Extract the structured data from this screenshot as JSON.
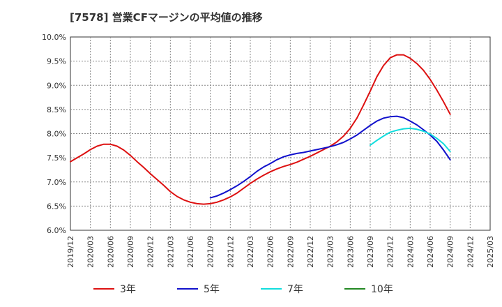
{
  "title": "[7578]  営業CFマージンの平均値の推移",
  "chart_data": {
    "type": "line",
    "title": "[7578]  営業CFマージンの平均値の推移",
    "xlabel": "",
    "ylabel": "",
    "x_ticks": [
      "2019/12",
      "2020/03",
      "2020/06",
      "2020/09",
      "2020/12",
      "2021/03",
      "2021/06",
      "2021/09",
      "2021/12",
      "2022/03",
      "2022/06",
      "2022/09",
      "2022/12",
      "2023/03",
      "2023/06",
      "2023/09",
      "2023/12",
      "2024/03",
      "2024/06",
      "2024/09",
      "2024/12",
      "2025/03"
    ],
    "y_ticks": [
      "10.0%",
      "9.5%",
      "9.0%",
      "8.5%",
      "8.0%",
      "7.5%",
      "7.0%",
      "6.5%",
      "6.0%"
    ],
    "ylim": [
      6.0,
      10.0
    ],
    "grid": true,
    "legend_position": "bottom",
    "series": [
      {
        "name": "3年",
        "color": "#dd1111",
        "x": [
          "2019/12",
          "2020/01",
          "2020/02",
          "2020/03",
          "2020/04",
          "2020/05",
          "2020/06",
          "2020/07",
          "2020/08",
          "2020/09",
          "2020/10",
          "2020/11",
          "2020/12",
          "2021/01",
          "2021/02",
          "2021/03",
          "2021/04",
          "2021/05",
          "2021/06",
          "2021/07",
          "2021/08",
          "2021/09",
          "2021/10",
          "2021/11",
          "2021/12",
          "2022/01",
          "2022/02",
          "2022/03",
          "2022/04",
          "2022/05",
          "2022/06",
          "2022/07",
          "2022/08",
          "2022/09",
          "2022/10",
          "2022/11",
          "2022/12",
          "2023/01",
          "2023/02",
          "2023/03",
          "2023/04",
          "2023/05",
          "2023/06",
          "2023/07",
          "2023/08",
          "2023/09",
          "2023/10",
          "2023/11",
          "2023/12",
          "2024/01",
          "2024/02",
          "2024/03",
          "2024/04",
          "2024/05",
          "2024/06",
          "2024/07",
          "2024/08",
          "2024/09"
        ],
        "values": [
          7.42,
          7.5,
          7.58,
          7.67,
          7.74,
          7.78,
          7.78,
          7.74,
          7.66,
          7.55,
          7.42,
          7.3,
          7.17,
          7.05,
          6.93,
          6.8,
          6.7,
          6.63,
          6.58,
          6.55,
          6.54,
          6.55,
          6.58,
          6.63,
          6.69,
          6.77,
          6.87,
          6.97,
          7.06,
          7.14,
          7.21,
          7.27,
          7.32,
          7.36,
          7.41,
          7.47,
          7.53,
          7.6,
          7.67,
          7.74,
          7.83,
          7.95,
          8.11,
          8.32,
          8.59,
          8.88,
          9.18,
          9.41,
          9.57,
          9.63,
          9.63,
          9.56,
          9.45,
          9.31,
          9.12,
          8.9,
          8.66,
          8.4
        ]
      },
      {
        "name": "5年",
        "color": "#1111cc",
        "x": [
          "2021/09",
          "2021/10",
          "2021/11",
          "2021/12",
          "2022/01",
          "2022/02",
          "2022/03",
          "2022/04",
          "2022/05",
          "2022/06",
          "2022/07",
          "2022/08",
          "2022/09",
          "2022/10",
          "2022/11",
          "2022/12",
          "2023/01",
          "2023/02",
          "2023/03",
          "2023/04",
          "2023/05",
          "2023/06",
          "2023/07",
          "2023/08",
          "2023/09",
          "2023/10",
          "2023/11",
          "2023/12",
          "2024/01",
          "2024/02",
          "2024/03",
          "2024/04",
          "2024/05",
          "2024/06",
          "2024/07",
          "2024/08",
          "2024/09"
        ],
        "values": [
          6.67,
          6.71,
          6.77,
          6.84,
          6.92,
          7.01,
          7.11,
          7.22,
          7.31,
          7.38,
          7.46,
          7.52,
          7.56,
          7.59,
          7.61,
          7.64,
          7.67,
          7.7,
          7.73,
          7.77,
          7.82,
          7.89,
          7.97,
          8.07,
          8.17,
          8.26,
          8.32,
          8.35,
          8.36,
          8.33,
          8.26,
          8.18,
          8.08,
          7.97,
          7.84,
          7.66,
          7.46
        ]
      },
      {
        "name": "7年",
        "color": "#11dddd",
        "x": [
          "2023/09",
          "2023/10",
          "2023/11",
          "2023/12",
          "2024/01",
          "2024/02",
          "2024/03",
          "2024/04",
          "2024/05",
          "2024/06",
          "2024/07",
          "2024/08",
          "2024/09"
        ],
        "values": [
          7.76,
          7.86,
          7.95,
          8.03,
          8.07,
          8.1,
          8.11,
          8.09,
          8.05,
          7.99,
          7.9,
          7.79,
          7.63
        ]
      },
      {
        "name": "10年",
        "color": "#228822",
        "x": [],
        "values": []
      }
    ]
  }
}
